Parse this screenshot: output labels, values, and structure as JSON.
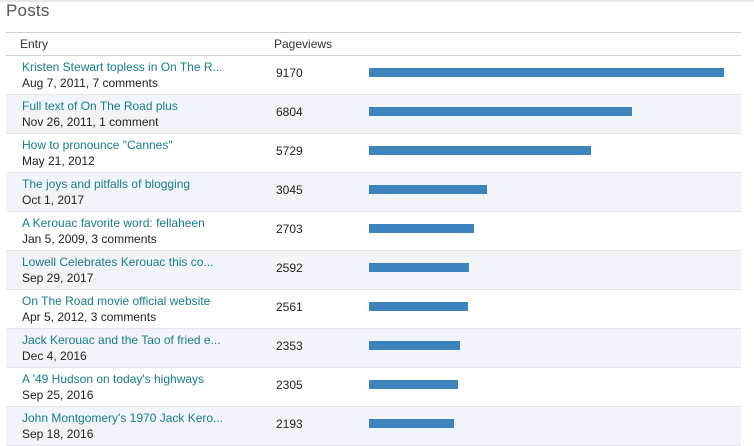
{
  "section_title": "Posts",
  "columns": {
    "entry": "Entry",
    "pageviews": "Pageviews"
  },
  "bar_color": "#3d84bf",
  "link_color": "#1a7c86",
  "max_pageviews": 9170,
  "rows": [
    {
      "title": "Kristen Stewart topless in On The R...",
      "meta": "Aug 7, 2011, 7 comments",
      "pageviews": "9170",
      "pv_value": 9170
    },
    {
      "title": "Full text of On The Road plus",
      "meta": "Nov 26, 2011, 1 comment",
      "pageviews": "6804",
      "pv_value": 6804
    },
    {
      "title": "How to pronounce \"Cannes\"",
      "meta": "May 21, 2012",
      "pageviews": "5729",
      "pv_value": 5729
    },
    {
      "title": "The joys and pitfalls of blogging",
      "meta": "Oct 1, 2017",
      "pageviews": "3045",
      "pv_value": 3045
    },
    {
      "title": "A Kerouac favorite word: fellaheen",
      "meta": "Jan 5, 2009, 3 comments",
      "pageviews": "2703",
      "pv_value": 2703
    },
    {
      "title": "Lowell Celebrates Kerouac this co...",
      "meta": "Sep 29, 2017",
      "pageviews": "2592",
      "pv_value": 2592
    },
    {
      "title": "On The Road movie official website",
      "meta": "Apr 5, 2012, 3 comments",
      "pageviews": "2561",
      "pv_value": 2561
    },
    {
      "title": "Jack Kerouac and the Tao of fried e...",
      "meta": "Dec 4, 2016",
      "pageviews": "2353",
      "pv_value": 2353
    },
    {
      "title": "A '49 Hudson on today's highways",
      "meta": "Sep 25, 2016",
      "pageviews": "2305",
      "pv_value": 2305
    },
    {
      "title": "John Montgomery's 1970 Jack Kero...",
      "meta": "Sep 18, 2016",
      "pageviews": "2193",
      "pv_value": 2193
    }
  ]
}
